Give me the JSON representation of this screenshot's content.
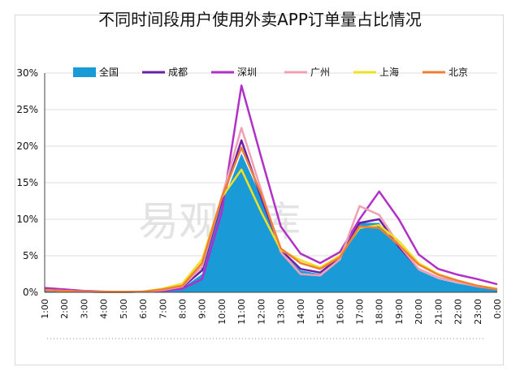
{
  "chart_data": {
    "type": "line",
    "title": "不同时间段用户使用外卖APP订单量占比情况",
    "watermark": "易观智库",
    "xlabel": "",
    "ylabel": "",
    "ylim": [
      0,
      30
    ],
    "yticks": [
      "0%",
      "5%",
      "10%",
      "15%",
      "20%",
      "25%",
      "30%"
    ],
    "categories": [
      "1:00",
      "2:00",
      "3:00",
      "4:00",
      "5:00",
      "6:00",
      "7:00",
      "8:00",
      "9:00",
      "10:00",
      "11:00",
      "12:00",
      "13:00",
      "14:00",
      "15:00",
      "16:00",
      "17:00",
      "18:00",
      "19:00",
      "20:00",
      "21:00",
      "22:00",
      "23:00",
      "0:00"
    ],
    "legend_position": "top",
    "series": [
      {
        "name": "全国",
        "style": "area",
        "color": "#1a9ad6",
        "values": [
          0.3,
          0.2,
          0.1,
          0.05,
          0.05,
          0.1,
          0.3,
          0.6,
          2.5,
          12,
          19,
          13,
          5.5,
          3,
          2.5,
          4.5,
          9.5,
          9.5,
          6,
          3,
          1.8,
          1.2,
          0.7,
          0.3
        ]
      },
      {
        "name": "成都",
        "style": "line",
        "color": "#6a1fa8",
        "values": [
          0.3,
          0.2,
          0.1,
          0.05,
          0.05,
          0.1,
          0.3,
          0.7,
          3,
          12.5,
          20.8,
          13,
          5.8,
          3.2,
          2.7,
          4.8,
          9.5,
          10,
          6.2,
          3.2,
          2,
          1.4,
          0.8,
          0.4
        ]
      },
      {
        "name": "深圳",
        "style": "line",
        "color": "#b030c8",
        "values": [
          0.6,
          0.4,
          0.2,
          0.1,
          0.05,
          0.1,
          0.2,
          0.5,
          1.8,
          11,
          28.3,
          18.5,
          9,
          5.3,
          4,
          5.5,
          10,
          13.8,
          10,
          5.2,
          3.2,
          2.4,
          1.8,
          1.1
        ]
      },
      {
        "name": "广州",
        "style": "line",
        "color": "#f0a0b4",
        "values": [
          0.3,
          0.2,
          0.1,
          0.05,
          0.05,
          0.1,
          0.3,
          0.8,
          3.5,
          13,
          22.5,
          14,
          5.5,
          2.5,
          2.3,
          4.5,
          11.8,
          10.6,
          6.5,
          3.2,
          2,
          1.4,
          0.8,
          0.4
        ]
      },
      {
        "name": "上海",
        "style": "line",
        "color": "#f0e020",
        "values": [
          0.3,
          0.2,
          0.1,
          0.05,
          0.05,
          0.1,
          0.5,
          1.2,
          4.5,
          13,
          16.8,
          11,
          5.8,
          4.4,
          3.4,
          5,
          8.8,
          9.2,
          7,
          4,
          2.5,
          1.6,
          0.9,
          0.5
        ]
      },
      {
        "name": "北京",
        "style": "line",
        "color": "#ef7f36",
        "values": [
          0.3,
          0.2,
          0.1,
          0.05,
          0.05,
          0.1,
          0.4,
          0.9,
          4,
          13,
          19.8,
          13.5,
          6,
          4,
          3.2,
          4.8,
          9,
          8.8,
          6.5,
          3.8,
          2.4,
          1.6,
          0.9,
          0.4
        ]
      }
    ]
  }
}
